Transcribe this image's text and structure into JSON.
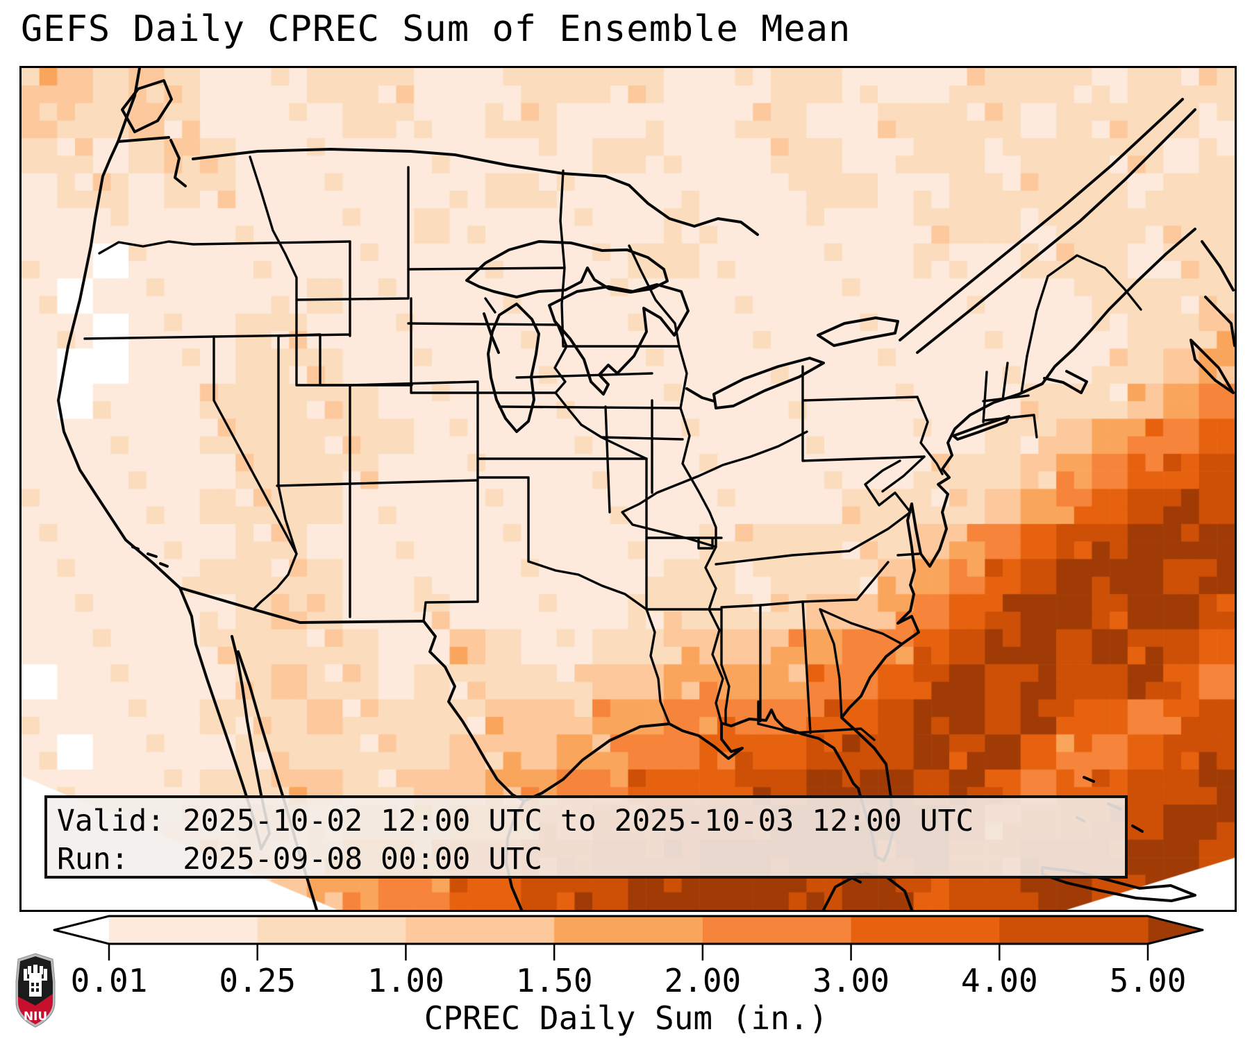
{
  "title": "GEFS Daily CPREC Sum of Ensemble Mean",
  "info_box": {
    "line1": "Valid: 2025-10-02 12:00 UTC to 2025-10-03 12:00 UTC",
    "line2": "Run:   2025-09-08 00:00 UTC"
  },
  "colorbar": {
    "label": "CPREC Daily Sum (in.)",
    "ticks": [
      "0.01",
      "0.25",
      "1.00",
      "1.50",
      "2.00",
      "3.00",
      "4.00",
      "5.00"
    ],
    "extend": "both"
  },
  "logo": {
    "text": "NIU",
    "red": "#c8102e",
    "dark": "#1b1b1b",
    "silver": "#b9bcbf"
  },
  "chart_data": {
    "type": "heatmap",
    "title": "GEFS Daily CPREC Sum of Ensemble Mean",
    "variable": "CPREC Daily Sum (in.)",
    "region": "Contiguous United States",
    "valid": "2025-10-02 12:00 UTC to 2025-10-03 12:00 UTC",
    "run": "2025-09-08 00:00 UTC",
    "levels_in": [
      0.01,
      0.25,
      1.0,
      1.5,
      2.0,
      3.0,
      4.0,
      5.0
    ],
    "legend_position": "bottom",
    "palette": {
      "under": "#ffffff",
      "colors": [
        "#fdeadc",
        "#fbdcbd",
        "#fcc89c",
        "#faa55c",
        "#f6843a",
        "#e7620e",
        "#ce4f06"
      ],
      "over": "#a03b06"
    },
    "grid_comment": "Estimated precipitation level field, 34x24 cells, west-to-east / north-to-south; digit = color bin 0(<0.01in) .. 8(>5.00in)",
    "grid": [
      "3323211122211122221112211122221222",
      "3223211112211221111122112222122221",
      "2212321111111111221112211221222212",
      "1221221111111221111111221122222122",
      "1111111111121111112111111222122222",
      "1101111111111111122111111211222122",
      "1011111121111111111111111111112222",
      "1101112211111111111111111111111223",
      "1001112221111111111111111111112234",
      "1011122222111111111111111111222345",
      "1111122222211111111111111112234556",
      "1111112222111111111111111222345667",
      "1111122221111111111111122223456787",
      "1111112211111111111222222345677888",
      "1111122221111111112212223456788878",
      "1111112321121111122222334567887887",
      "1111122222113211223334455678878776",
      "0111112322122222334444556787877865",
      "1111122232222333445555667887866567",
      "1011112222223334455666777878655677",
      "1111122332233445566677888786566778",
      "0111223323334455667778888875667788",
      "1112233234445566777888887866777887",
      "1122332344556677788888788677887888"
    ]
  }
}
